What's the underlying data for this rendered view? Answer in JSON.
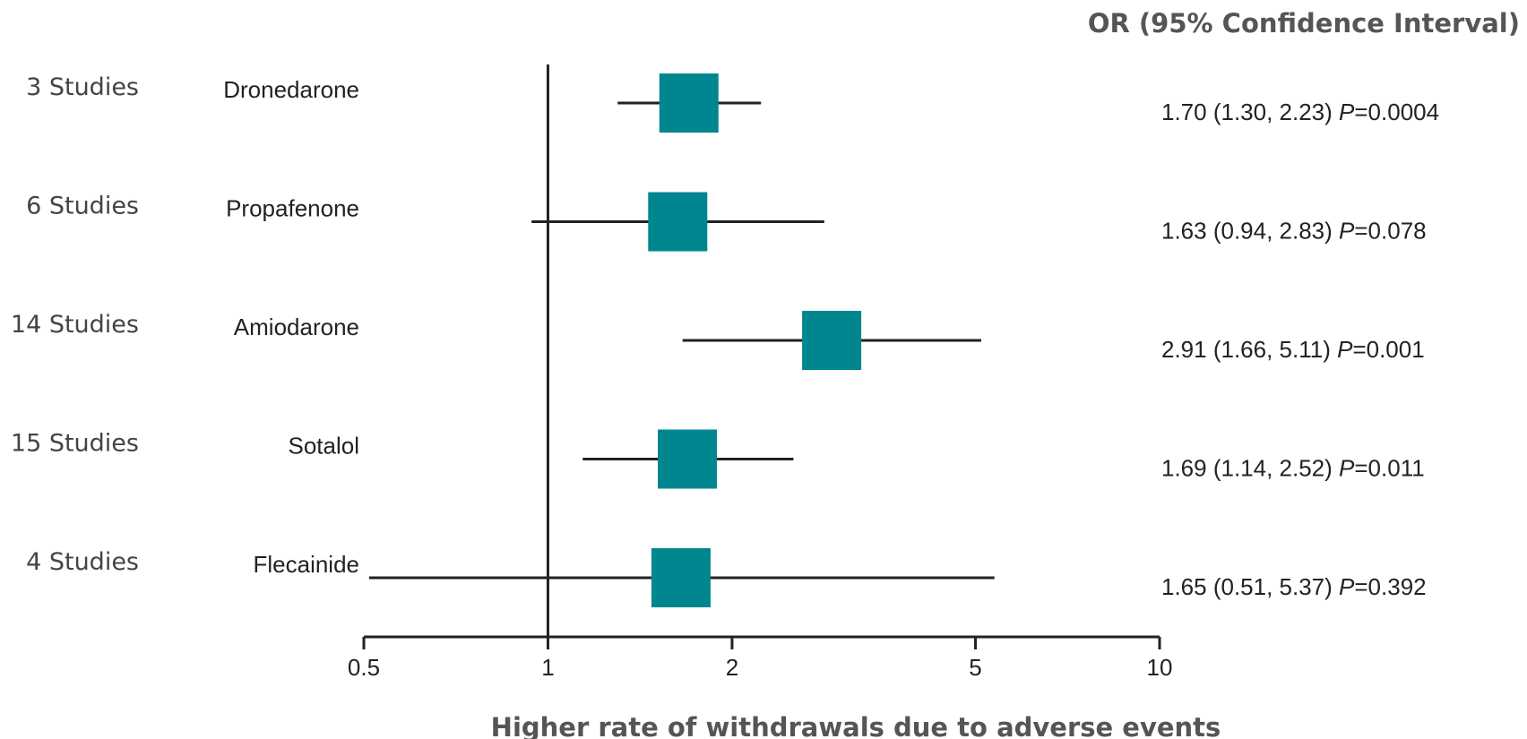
{
  "chart_data": {
    "type": "forest",
    "header": "OR (95% Confidence Interval)",
    "xlabel": "Higher rate of withdrawals due to adverse events",
    "xscale": "log",
    "xlim": [
      0.5,
      10
    ],
    "xticks": [
      0.5,
      1,
      2,
      5,
      10
    ],
    "xtick_labels": [
      "0.5",
      "1",
      "2",
      "5",
      "10"
    ],
    "reference_line": 1,
    "marker_color": "#00868f",
    "rows": [
      {
        "studies": "3 Studies",
        "drug": "Dronedarone",
        "or": 1.7,
        "ci_low": 1.3,
        "ci_high": 2.23,
        "or_text": "1.70 (1.30, 2.23)",
        "p_label": "P",
        "p_value": "=0.0004"
      },
      {
        "studies": "6 Studies",
        "drug": "Propafenone",
        "or": 1.63,
        "ci_low": 0.94,
        "ci_high": 2.83,
        "or_text": "1.63 (0.94, 2.83)",
        "p_label": "P",
        "p_value": "=0.078"
      },
      {
        "studies": "14 Studies",
        "drug": "Amiodarone",
        "or": 2.91,
        "ci_low": 1.66,
        "ci_high": 5.11,
        "or_text": "2.91 (1.66, 5.11)",
        "p_label": "P",
        "p_value": "=0.001"
      },
      {
        "studies": "15 Studies",
        "drug": "Sotalol",
        "or": 1.69,
        "ci_low": 1.14,
        "ci_high": 2.52,
        "or_text": "1.69 (1.14, 2.52)",
        "p_label": "P",
        "p_value": "=0.011"
      },
      {
        "studies": "4 Studies",
        "drug": "Flecainide",
        "or": 1.65,
        "ci_low": 0.51,
        "ci_high": 5.37,
        "or_text": "1.65 (0.51, 5.37)",
        "p_label": "P",
        "p_value": "=0.392"
      }
    ]
  }
}
